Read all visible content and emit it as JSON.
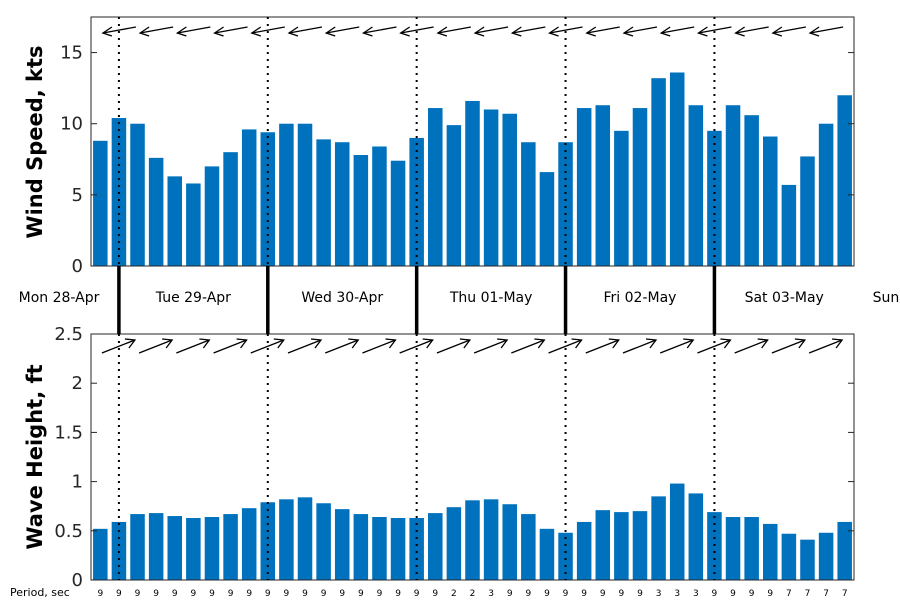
{
  "chart_data": [
    {
      "type": "bar",
      "ylabel": "Wind Speed, kts",
      "ylim": [
        0,
        17.5
      ],
      "yticks": [
        "0",
        "5",
        "10",
        "15"
      ],
      "bar_color": "#0072bd",
      "values": [
        8.8,
        10.4,
        10.0,
        7.6,
        6.3,
        5.8,
        7.0,
        8.0,
        9.6,
        9.4,
        10.0,
        10.0,
        8.9,
        8.7,
        7.8,
        8.4,
        7.4,
        9.0,
        11.1,
        9.9,
        11.6,
        11.0,
        10.7,
        8.7,
        6.6,
        8.7,
        11.1,
        11.3,
        9.5,
        11.1,
        13.2,
        13.6,
        11.3,
        9.5,
        11.3,
        10.6,
        9.1,
        5.7,
        7.7,
        10.0,
        12.0
      ],
      "direction_arrows": "pointing west (from the east)"
    },
    {
      "type": "bar",
      "ylabel": "Wave Height, ft",
      "ylim": [
        0,
        2.5
      ],
      "yticks": [
        "0",
        "0.5",
        "1",
        "1.5",
        "2",
        "2.5"
      ],
      "bar_color": "#0072bd",
      "values": [
        0.52,
        0.59,
        0.67,
        0.68,
        0.65,
        0.63,
        0.64,
        0.67,
        0.73,
        0.79,
        0.82,
        0.84,
        0.78,
        0.72,
        0.67,
        0.64,
        0.63,
        0.63,
        0.68,
        0.74,
        0.81,
        0.82,
        0.77,
        0.67,
        0.52,
        0.48,
        0.59,
        0.71,
        0.69,
        0.7,
        0.85,
        0.98,
        0.88,
        0.69,
        0.64,
        0.64,
        0.57,
        0.47,
        0.41,
        0.48,
        0.59
      ],
      "direction_arrows": "pointing northeast",
      "period_label": "Period, sec",
      "periods": [
        "9",
        "9",
        "9",
        "9",
        "9",
        "9",
        "9",
        "9",
        "9",
        "9",
        "9",
        "9",
        "9",
        "9",
        "9",
        "9",
        "9",
        "9",
        "9",
        "2",
        "2",
        "3",
        "9",
        "9",
        "9",
        "9",
        "9",
        "9",
        "9",
        "9",
        "3",
        "3",
        "3",
        "9",
        "9",
        "9",
        "9",
        "7",
        "7",
        "7",
        "7"
      ]
    }
  ],
  "day_labels": [
    "Mon 28-Apr",
    "Tue 29-Apr",
    "Wed 30-Apr",
    "Thu 01-May",
    "Fri 02-May",
    "Sat 03-May",
    "Sun"
  ],
  "colors": {
    "bars": "#0072bd",
    "arrows": "#000000"
  }
}
